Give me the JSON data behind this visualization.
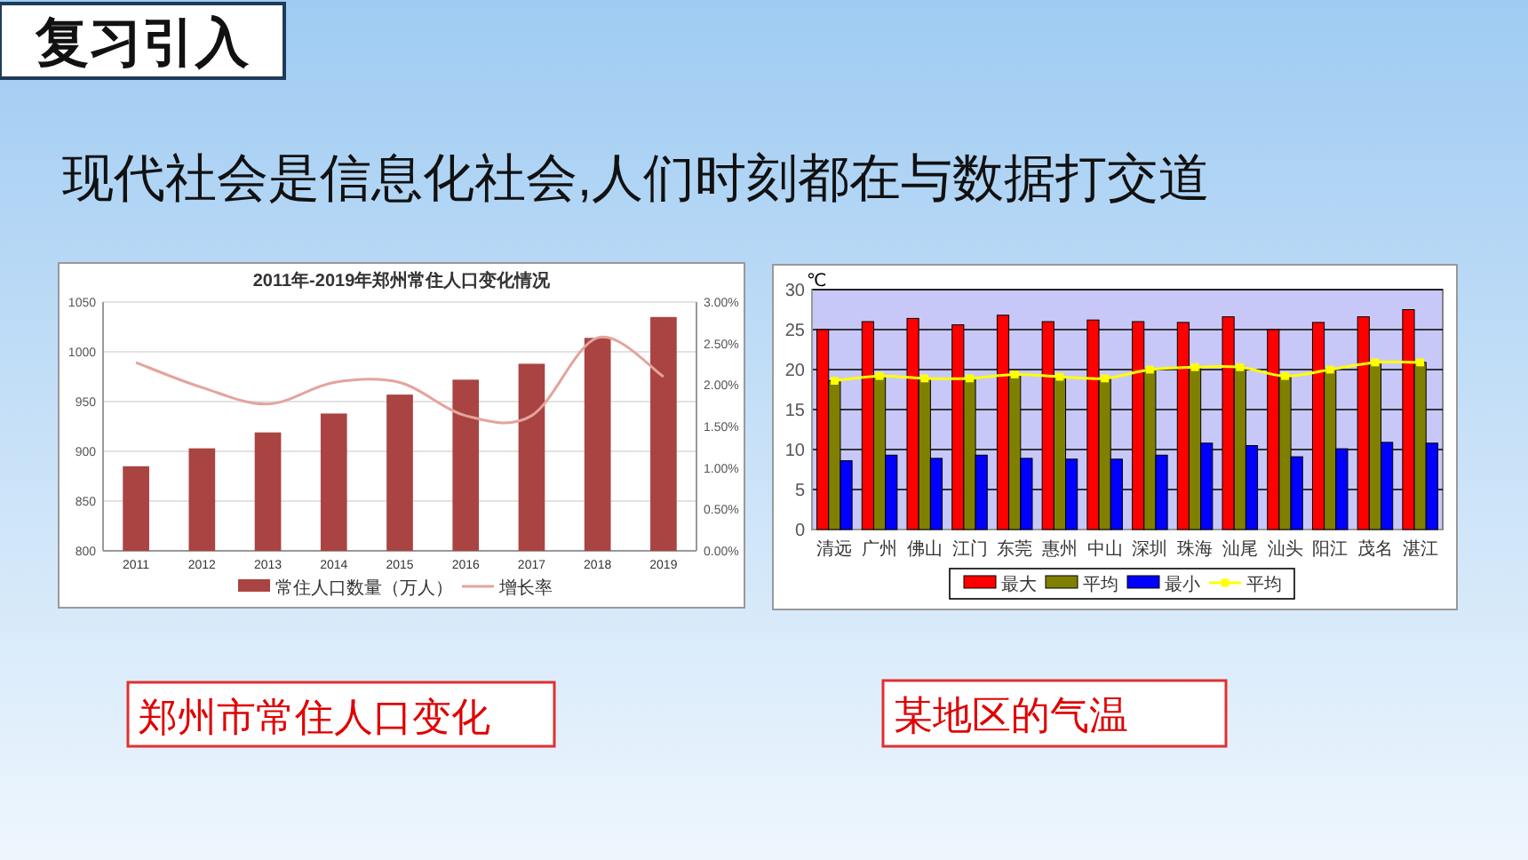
{
  "chart_data": [
    {
      "type": "bar",
      "title": "2011年-2019年郑州常住人口变化情况",
      "categories": [
        "2011",
        "2012",
        "2013",
        "2014",
        "2015",
        "2016",
        "2017",
        "2018",
        "2019"
      ],
      "series": [
        {
          "name": "常住人口数量（万人）",
          "color": "#a94442",
          "values": [
            885,
            903,
            919,
            938,
            957,
            972,
            988,
            1014,
            1035
          ]
        },
        {
          "name": "增长率",
          "type": "line",
          "axis": "y2",
          "color": "#e3a49c",
          "values": [
            2.27,
            1.97,
            1.77,
            2.03,
            2.03,
            1.63,
            1.63,
            2.57,
            2.1
          ]
        }
      ],
      "ylim": [
        800,
        1050
      ],
      "yticks": [
        800,
        850,
        900,
        950,
        1000,
        1050
      ],
      "y2lim": [
        0,
        3
      ],
      "y2ticks": [
        {
          "value": 0,
          "label": "0.00%"
        },
        {
          "value": 0.5,
          "label": "0.50%"
        },
        {
          "value": 1,
          "label": "1.00%"
        },
        {
          "value": 1.5,
          "label": "1.50%"
        },
        {
          "value": 2,
          "label": "2.00%"
        },
        {
          "value": 2.5,
          "label": "2.50%"
        },
        {
          "value": 3,
          "label": "3.00%"
        }
      ],
      "grid": "y",
      "legend": "bottom",
      "annotations": [
        "复习引入",
        "现代社会是信息化社会,人们时刻都在与数据打交道",
        "郑州市常住人口变化"
      ]
    },
    {
      "type": "bar",
      "ylabel": "℃",
      "categories": [
        "清远",
        "广州",
        "佛山",
        "江门",
        "东莞",
        "惠州",
        "中山",
        "深圳",
        "珠海",
        "汕尾",
        "汕头",
        "阳江",
        "茂名",
        "湛江"
      ],
      "series": [
        {
          "name": "最大",
          "color": "#ff0000",
          "values": [
            25.0,
            26.0,
            26.4,
            25.6,
            26.8,
            26.0,
            26.2,
            26.0,
            25.9,
            26.6,
            25.0,
            25.9,
            26.6,
            27.5
          ]
        },
        {
          "name": "平均",
          "color": "#808000",
          "values": [
            18.6,
            19.2,
            18.9,
            18.9,
            19.4,
            19.1,
            18.9,
            20.0,
            20.3,
            20.3,
            19.2,
            20.0,
            20.9,
            20.9
          ]
        },
        {
          "name": "最小",
          "color": "#0000ff",
          "values": [
            8.6,
            9.3,
            8.9,
            9.3,
            8.9,
            8.8,
            8.8,
            9.3,
            10.8,
            10.5,
            9.1,
            10.1,
            10.9,
            10.8
          ]
        },
        {
          "name": "平均",
          "type": "line",
          "color": "#ffff00",
          "marker": "square",
          "values": [
            18.6,
            19.2,
            18.9,
            18.9,
            19.4,
            19.1,
            18.9,
            20.0,
            20.3,
            20.3,
            19.2,
            20.0,
            20.9,
            20.9
          ]
        }
      ],
      "ylim": [
        0,
        30
      ],
      "yticks": [
        0,
        5,
        10,
        15,
        20,
        25,
        30
      ],
      "grid": "y",
      "legend": "bottom",
      "annotations": [
        "某地区的气温"
      ]
    }
  ]
}
